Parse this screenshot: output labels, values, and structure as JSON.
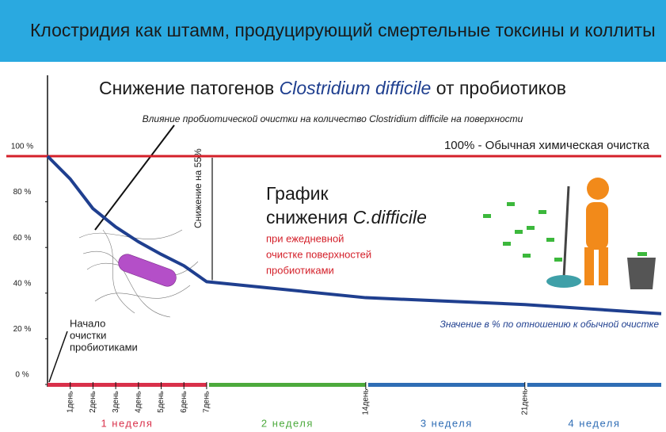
{
  "header": {
    "title": "Клостридия как штамм, продуцирующий смертельные токсины и коллиты"
  },
  "chart_data": {
    "type": "line",
    "title_parts": [
      "Снижение патогенов ",
      "Clostridium difficile",
      " от пробиотиков"
    ],
    "subtitle": "Влияние пробиотической очистки на количество Clostridium difficile на поверхности",
    "x": [
      0,
      1,
      2,
      3,
      4,
      5,
      6,
      7,
      10,
      14,
      21,
      27
    ],
    "series": [
      {
        "name": "Значение в % по отношению к обычной очистке",
        "color": "#1f3f8f",
        "values": [
          100,
          90,
          77,
          69,
          62.5,
          57,
          52,
          45,
          42,
          38,
          35,
          31
        ]
      }
    ],
    "xlim": [
      0,
      27
    ],
    "xticks": [
      {
        "value": 1,
        "label": "1день"
      },
      {
        "value": 2,
        "label": "2день"
      },
      {
        "value": 3,
        "label": "3день"
      },
      {
        "value": 4,
        "label": "4день"
      },
      {
        "value": 5,
        "label": "5день"
      },
      {
        "value": 6,
        "label": "6день"
      },
      {
        "value": 7,
        "label": "7день"
      },
      {
        "value": 14,
        "label": "14день"
      },
      {
        "value": 21,
        "label": "21день"
      }
    ],
    "ylim": [
      0,
      100
    ],
    "yticks": [
      {
        "value": 0,
        "label": "0 %"
      },
      {
        "value": 20,
        "label": "20 %"
      },
      {
        "value": 40,
        "label": "40 %"
      },
      {
        "value": 60,
        "label": "60 %"
      },
      {
        "value": 80,
        "label": "80 %"
      },
      {
        "value": 100,
        "label": "100 %"
      }
    ],
    "reference_line": {
      "value": 100,
      "label": "100% - Обычная химическая очистка",
      "color": "#d4202a"
    },
    "weeks": [
      {
        "label": "1 неделя",
        "color": "#d9304a"
      },
      {
        "label": "2 неделя",
        "color": "#4caa3c"
      },
      {
        "label": "3 неделя",
        "color": "#2f6db5"
      },
      {
        "label": "4 неделя",
        "color": "#2f6db5"
      }
    ],
    "annotations": {
      "reduction": "Снижение на 55%",
      "graph_title": [
        "График",
        "снижения ",
        "C.difficile"
      ],
      "graph_note": [
        "при ежедневной",
        "очистке поверхностей",
        "пробиотиками"
      ],
      "start": [
        "Начало",
        "очистки",
        "пробиотиками"
      ]
    }
  }
}
